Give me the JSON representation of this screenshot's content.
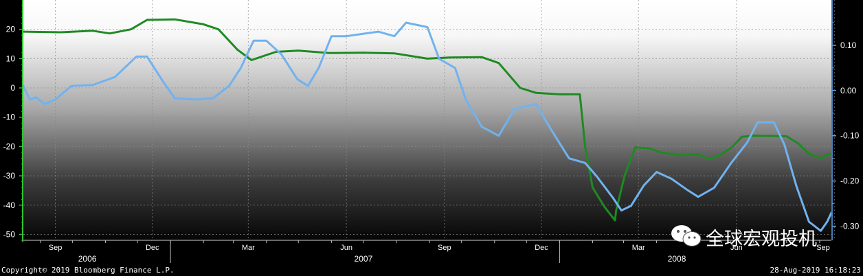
{
  "chart_data": {
    "type": "line",
    "title": "",
    "xlabel": "",
    "y_left": {
      "ylim": [
        -52,
        30
      ],
      "ticks": [
        20,
        10,
        0,
        -10,
        -20,
        -30,
        -40,
        -50
      ]
    },
    "y_right": {
      "ylim": [
        -0.331,
        0.2
      ],
      "ticks": [
        "0.10",
        "0.00",
        "-0.10",
        "-0.20",
        "-0.30"
      ]
    },
    "x_range": [
      "2006-08-16",
      "2008-09-12"
    ],
    "x_months": [
      {
        "label": "Sep",
        "date": "2006-09-15"
      },
      {
        "label": "Dec",
        "date": "2006-12-15"
      },
      {
        "label": "Mar",
        "date": "2007-03-15"
      },
      {
        "label": "Jun",
        "date": "2007-06-15"
      },
      {
        "label": "Sep",
        "date": "2007-09-15"
      },
      {
        "label": "Dec",
        "date": "2007-12-15"
      },
      {
        "label": "Mar",
        "date": "2008-03-15"
      },
      {
        "label": "Jun",
        "date": "2008-06-15"
      },
      {
        "label": "Sep",
        "date": "2008-09-15"
      }
    ],
    "x_years": [
      {
        "label": "2006",
        "date": "2006-10-15"
      },
      {
        "label": "2007",
        "date": "2007-07-01"
      },
      {
        "label": "2008",
        "date": "2008-04-20"
      }
    ],
    "x_year_boundaries": [
      "2007-01-01",
      "2008-01-01"
    ],
    "grid": true,
    "series": [
      {
        "axis": "left",
        "color": "#1e8a22",
        "points": [
          [
            "2006-08-16",
            19.2
          ],
          [
            "2006-09-20",
            19.0
          ],
          [
            "2006-10-20",
            19.5
          ],
          [
            "2006-11-05",
            18.6
          ],
          [
            "2006-11-25",
            20.0
          ],
          [
            "2006-12-10",
            23.2
          ],
          [
            "2007-01-05",
            23.4
          ],
          [
            "2007-02-01",
            21.7
          ],
          [
            "2007-02-15",
            20.0
          ],
          [
            "2007-03-05",
            13.0
          ],
          [
            "2007-03-18",
            9.5
          ],
          [
            "2007-04-10",
            12.3
          ],
          [
            "2007-05-01",
            12.7
          ],
          [
            "2007-05-30",
            11.9
          ],
          [
            "2007-07-01",
            12.0
          ],
          [
            "2007-07-30",
            11.8
          ],
          [
            "2007-08-30",
            10.0
          ],
          [
            "2007-09-20",
            10.4
          ],
          [
            "2007-10-20",
            10.5
          ],
          [
            "2007-11-05",
            8.5
          ],
          [
            "2007-11-25",
            0.0
          ],
          [
            "2007-12-10",
            -1.7
          ],
          [
            "2008-01-01",
            -2.2
          ],
          [
            "2008-01-20",
            -2.2
          ],
          [
            "2008-01-25",
            -20.0
          ],
          [
            "2008-02-01",
            -34.0
          ],
          [
            "2008-02-12",
            -40.5
          ],
          [
            "2008-02-22",
            -45.2
          ],
          [
            "2008-02-23",
            -42.0
          ],
          [
            "2008-03-02",
            -30.0
          ],
          [
            "2008-03-12",
            -20.3
          ],
          [
            "2008-03-25",
            -20.6
          ],
          [
            "2008-04-05",
            -22.0
          ],
          [
            "2008-04-25",
            -23.0
          ],
          [
            "2008-05-10",
            -22.6
          ],
          [
            "2008-05-20",
            -24.3
          ],
          [
            "2008-05-30",
            -23.0
          ],
          [
            "2008-06-10",
            -20.5
          ],
          [
            "2008-06-20",
            -16.7
          ],
          [
            "2008-07-01",
            -16.3
          ],
          [
            "2008-08-01",
            -16.5
          ],
          [
            "2008-08-12",
            -19.0
          ],
          [
            "2008-08-22",
            -22.5
          ],
          [
            "2008-09-03",
            -24.1
          ],
          [
            "2008-09-08",
            -22.6
          ],
          [
            "2008-09-12",
            -22.6
          ]
        ]
      },
      {
        "axis": "right",
        "color": "#71b2ef",
        "points": [
          [
            "2006-08-16",
            0.01
          ],
          [
            "2006-08-22",
            -0.02
          ],
          [
            "2006-08-28",
            -0.015
          ],
          [
            "2006-09-05",
            -0.03
          ],
          [
            "2006-09-15",
            -0.02
          ],
          [
            "2006-09-30",
            0.01
          ],
          [
            "2006-10-20",
            0.012
          ],
          [
            "2006-11-10",
            0.03
          ],
          [
            "2006-11-30",
            0.075
          ],
          [
            "2006-12-10",
            0.075
          ],
          [
            "2006-12-25",
            0.02
          ],
          [
            "2007-01-05",
            -0.017
          ],
          [
            "2007-01-25",
            -0.02
          ],
          [
            "2007-02-10",
            -0.017
          ],
          [
            "2007-02-25",
            0.01
          ],
          [
            "2007-03-08",
            0.05
          ],
          [
            "2007-03-20",
            0.11
          ],
          [
            "2007-04-01",
            0.11
          ],
          [
            "2007-04-15",
            0.08
          ],
          [
            "2007-04-30",
            0.025
          ],
          [
            "2007-05-10",
            0.01
          ],
          [
            "2007-05-20",
            0.05
          ],
          [
            "2007-06-01",
            0.12
          ],
          [
            "2007-06-15",
            0.12
          ],
          [
            "2007-06-30",
            0.125
          ],
          [
            "2007-07-15",
            0.13
          ],
          [
            "2007-07-30",
            0.12
          ],
          [
            "2007-08-10",
            0.15
          ],
          [
            "2007-08-30",
            0.14
          ],
          [
            "2007-09-10",
            0.07
          ],
          [
            "2007-09-25",
            0.05
          ],
          [
            "2007-10-05",
            -0.02
          ],
          [
            "2007-10-20",
            -0.08
          ],
          [
            "2007-11-05",
            -0.1
          ],
          [
            "2007-11-20",
            -0.04
          ],
          [
            "2007-12-10",
            -0.03
          ],
          [
            "2007-12-25",
            -0.09
          ],
          [
            "2008-01-10",
            -0.15
          ],
          [
            "2008-01-25",
            -0.16
          ],
          [
            "2008-02-05",
            -0.19
          ],
          [
            "2008-02-20",
            -0.237
          ],
          [
            "2008-02-28",
            -0.265
          ],
          [
            "2008-03-08",
            -0.255
          ],
          [
            "2008-03-20",
            -0.21
          ],
          [
            "2008-04-01",
            -0.18
          ],
          [
            "2008-04-15",
            -0.195
          ],
          [
            "2008-04-30",
            -0.22
          ],
          [
            "2008-05-10",
            -0.235
          ],
          [
            "2008-05-25",
            -0.215
          ],
          [
            "2008-06-10",
            -0.16
          ],
          [
            "2008-06-25",
            -0.115
          ],
          [
            "2008-07-05",
            -0.07
          ],
          [
            "2008-07-20",
            -0.07
          ],
          [
            "2008-07-30",
            -0.12
          ],
          [
            "2008-08-10",
            -0.21
          ],
          [
            "2008-08-22",
            -0.29
          ],
          [
            "2008-09-02",
            -0.31
          ],
          [
            "2008-09-08",
            -0.29
          ],
          [
            "2008-09-12",
            -0.27
          ]
        ]
      }
    ]
  },
  "footer": {
    "copyright": "Copyright© 2019 Bloomberg Finance L.P.",
    "timestamp": "28-Aug-2019 16:18:23"
  },
  "watermark": {
    "text": "全球宏观投机",
    "icon": "wechat-icon"
  }
}
